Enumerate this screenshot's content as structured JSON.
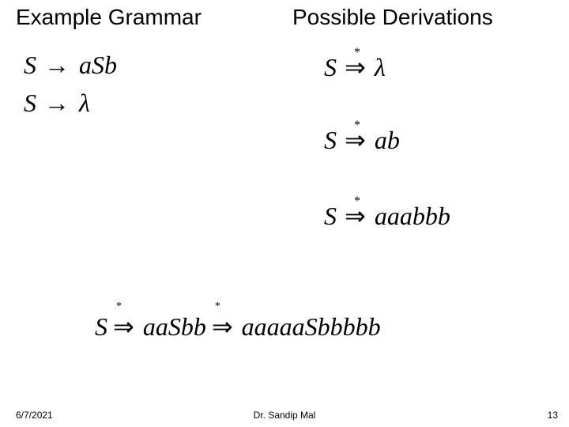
{
  "headings": {
    "left": "Example Grammar",
    "right": "Possible Derivations"
  },
  "grammar": {
    "rule1_lhs": "S",
    "rule1_rhs": "aSb",
    "rule2_lhs": "S",
    "rule2_rhs": "λ"
  },
  "derivations": {
    "d1_lhs": "S",
    "d1_rhs": "λ",
    "d2_lhs": "S",
    "d2_rhs": "ab",
    "d3_lhs": "S",
    "d3_rhs": "aaabbb"
  },
  "bottom": {
    "lhs": "S",
    "mid": "aaSbb",
    "rhs": "aaaaaSbbbbb"
  },
  "footer": {
    "date": "6/7/2021",
    "center": "Dr. Sandip Mal",
    "page": "13"
  },
  "glyphs": {
    "arrow_single": "→",
    "arrow_double": "⇒",
    "star": "*"
  },
  "style": {
    "heading_font": "Comic Sans MS",
    "math_font": "Times New Roman",
    "heading_fontsize": 28,
    "math_fontsize": 32,
    "footer_fontsize": 12,
    "background_color": "#ffffff",
    "text_color": "#000000"
  }
}
